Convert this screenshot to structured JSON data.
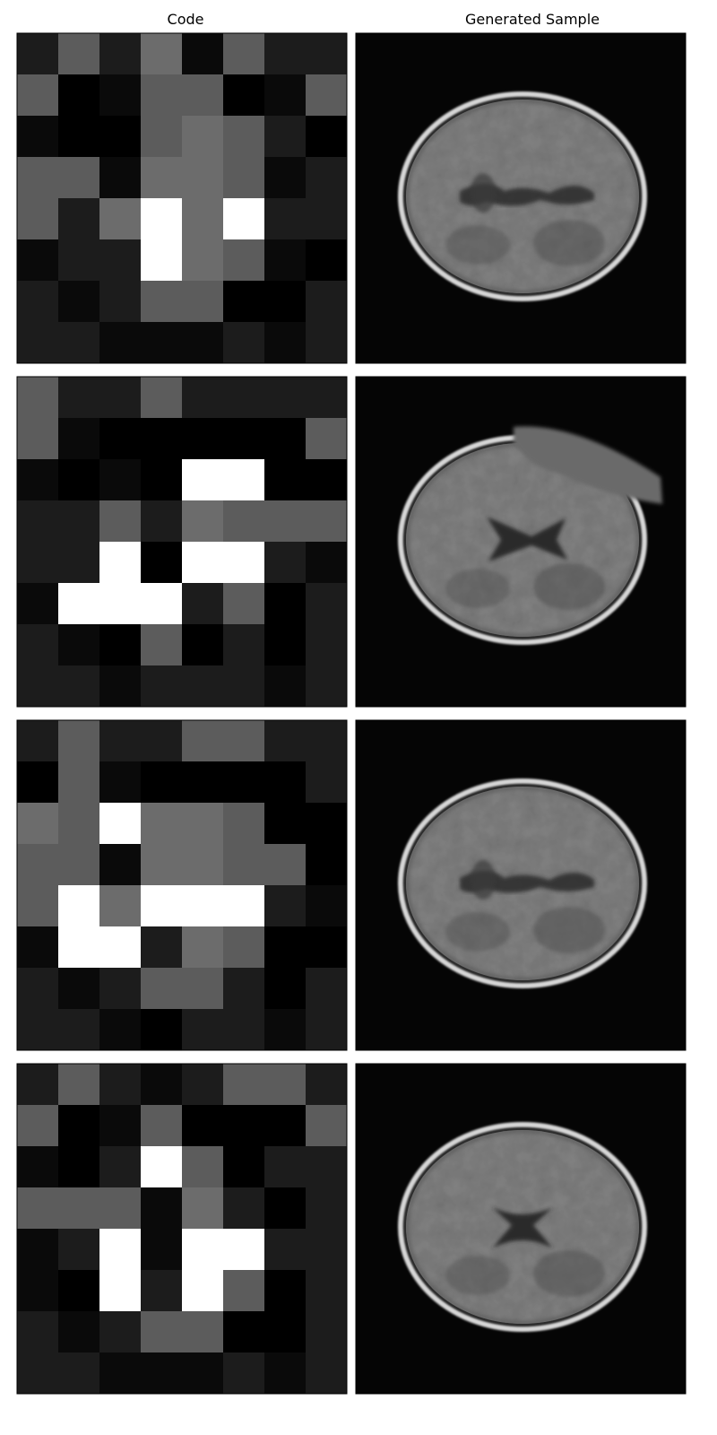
{
  "headers": {
    "code": "Code",
    "sample": "Generated Sample"
  },
  "palette": {
    "levels": [
      "#000000",
      "#0a0a0a",
      "#1c1c1c",
      "#5c5c5c",
      "#6c6c6c",
      "#ffffff"
    ],
    "sample_background": "#050505",
    "skull_ring": "#d8d8d8",
    "brain_tissue": "#828282",
    "ventricle": "#2a2a2a"
  },
  "rows": [
    {
      "code_grid": [
        [
          2,
          3,
          2,
          4,
          1,
          3,
          2,
          2
        ],
        [
          3,
          0,
          1,
          3,
          3,
          0,
          1,
          3
        ],
        [
          1,
          0,
          0,
          3,
          4,
          3,
          2,
          0
        ],
        [
          3,
          3,
          1,
          4,
          4,
          3,
          1,
          2
        ],
        [
          3,
          2,
          4,
          5,
          4,
          5,
          2,
          2
        ],
        [
          1,
          2,
          2,
          5,
          4,
          3,
          1,
          0
        ],
        [
          2,
          1,
          2,
          3,
          3,
          0,
          0,
          2
        ],
        [
          2,
          2,
          1,
          1,
          1,
          2,
          1,
          2
        ]
      ],
      "sample": {
        "description_icon": "brain-axial-mri",
        "ventricle_shape": "thin-midline",
        "frontal_defect": false
      }
    },
    {
      "code_grid": [
        [
          3,
          2,
          2,
          3,
          2,
          2,
          2,
          2
        ],
        [
          3,
          1,
          0,
          0,
          0,
          0,
          0,
          3
        ],
        [
          1,
          0,
          1,
          0,
          5,
          5,
          0,
          0
        ],
        [
          2,
          2,
          3,
          2,
          4,
          3,
          3,
          3
        ],
        [
          2,
          2,
          5,
          0,
          5,
          5,
          2,
          1
        ],
        [
          1,
          5,
          5,
          5,
          2,
          3,
          0,
          2
        ],
        [
          2,
          1,
          0,
          3,
          0,
          2,
          0,
          2
        ],
        [
          2,
          2,
          1,
          2,
          2,
          2,
          1,
          2
        ]
      ],
      "sample": {
        "description_icon": "brain-axial-mri",
        "ventricle_shape": "x-shaped",
        "frontal_defect": true
      }
    },
    {
      "code_grid": [
        [
          2,
          3,
          2,
          2,
          3,
          3,
          2,
          2
        ],
        [
          0,
          3,
          1,
          0,
          0,
          0,
          0,
          2
        ],
        [
          4,
          3,
          5,
          4,
          4,
          3,
          0,
          0
        ],
        [
          3,
          3,
          1,
          4,
          4,
          3,
          3,
          0
        ],
        [
          3,
          5,
          4,
          5,
          5,
          5,
          2,
          1
        ],
        [
          1,
          5,
          5,
          2,
          4,
          3,
          0,
          0
        ],
        [
          2,
          1,
          2,
          3,
          3,
          2,
          0,
          2
        ],
        [
          2,
          2,
          1,
          0,
          2,
          2,
          1,
          2
        ]
      ],
      "sample": {
        "description_icon": "brain-axial-mri",
        "ventricle_shape": "thin-midline",
        "frontal_defect": false
      }
    },
    {
      "code_grid": [
        [
          2,
          3,
          2,
          1,
          2,
          3,
          3,
          2
        ],
        [
          3,
          0,
          1,
          3,
          0,
          0,
          0,
          3
        ],
        [
          1,
          0,
          2,
          5,
          3,
          0,
          2,
          2
        ],
        [
          3,
          3,
          3,
          1,
          4,
          2,
          0,
          2
        ],
        [
          1,
          2,
          5,
          1,
          5,
          5,
          2,
          2
        ],
        [
          1,
          0,
          5,
          2,
          5,
          3,
          0,
          2
        ],
        [
          2,
          1,
          2,
          3,
          3,
          0,
          0,
          2
        ],
        [
          2,
          2,
          1,
          1,
          1,
          2,
          1,
          2
        ]
      ],
      "sample": {
        "description_icon": "brain-axial-mri",
        "ventricle_shape": "butterfly",
        "frontal_defect": false
      }
    }
  ]
}
